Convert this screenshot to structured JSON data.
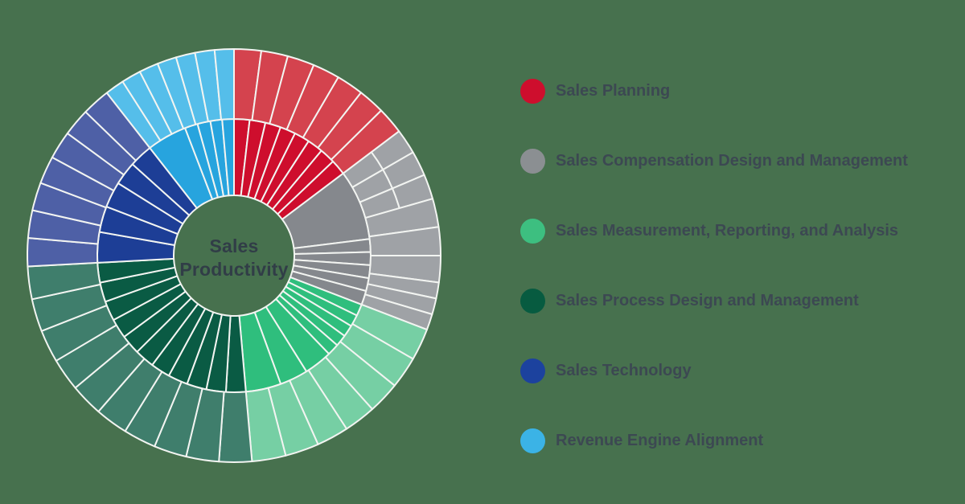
{
  "page": {
    "background_color": "#47714E"
  },
  "chart": {
    "center_label_line1": "Sales",
    "center_label_line2": "Productivity"
  },
  "legend": {
    "items": [
      {
        "label": "Sales Planning",
        "color": "#CE0E2D"
      },
      {
        "label": "Sales Compensation Design and Management",
        "color": "#8B8F92"
      },
      {
        "label": "Sales Measurement, Reporting, and Analysis",
        "color": "#3DBF80"
      },
      {
        "label": "Sales Process Design and Management",
        "color": "#075B40"
      },
      {
        "label": "Sales Technology",
        "color": "#1C429E"
      },
      {
        "label": "Revenue Engine Alignment",
        "color": "#3BB3E6"
      }
    ]
  },
  "chart_data": {
    "type": "sunburst",
    "title": "Sales Productivity",
    "center_label": [
      "Sales",
      "Productivity"
    ],
    "rings": 2,
    "legend_position": "right",
    "angle_convention": "degrees clockwise from 12 o'clock",
    "categories": [
      {
        "name": "Sales Planning",
        "inner_color": "#CE0E2D",
        "outer_color": "#D4434E",
        "start_angle": 0,
        "end_angle": 53,
        "inner_boundaries": [
          0,
          6.6,
          13.3,
          19.9,
          26.5,
          33.1,
          39.8,
          46.4,
          53
        ],
        "outer_boundaries": [
          0,
          7.6,
          15.1,
          22.7,
          30.3,
          37.9,
          45.4,
          53
        ],
        "split_outer": []
      },
      {
        "name": "Sales Compensation Design and Management",
        "inner_color": "#85888D",
        "outer_color": "#9FA2A6",
        "start_angle": 53,
        "end_angle": 111,
        "inner_boundaries": [
          53,
          83,
          88.5,
          94,
          99.5,
          105,
          111
        ],
        "outer_boundaries": [
          53,
          60,
          67,
          74,
          82,
          90,
          97.5,
          102,
          106.5,
          111
        ],
        "split_outer": [
          0,
          1,
          2
        ]
      },
      {
        "name": "Sales Measurement, Reporting, and Analysis",
        "inner_color": "#2FBE7D",
        "outer_color": "#76CFA4",
        "start_angle": 111,
        "end_angle": 175,
        "inner_boundaries": [
          111,
          116,
          121,
          126,
          131,
          136,
          148,
          160,
          175
        ],
        "outer_boundaries": [
          111,
          120,
          129,
          138,
          147,
          156,
          165.5,
          175
        ],
        "split_outer": []
      },
      {
        "name": "Sales Process Design and Management",
        "inner_color": "#0A5B44",
        "outer_color": "#3F7E6C",
        "start_angle": 175,
        "end_angle": 267,
        "inner_boundaries": [
          175,
          183.4,
          191.7,
          200.1,
          208.5,
          216.8,
          225.2,
          233.5,
          241.9,
          250.3,
          258.6,
          267
        ],
        "outer_boundaries": [
          175,
          184.2,
          193.4,
          202.6,
          211.8,
          221,
          230.2,
          239.4,
          248.6,
          257.8,
          267
        ],
        "split_outer": []
      },
      {
        "name": "Sales Technology",
        "inner_color": "#1D3E96",
        "outer_color": "#4E60A6",
        "start_angle": 267,
        "end_angle": 322,
        "inner_boundaries": [
          267,
          280,
          291,
          302,
          312,
          322
        ],
        "outer_boundaries": [
          267,
          274.9,
          282.7,
          290.6,
          298.4,
          306.3,
          314.1,
          322
        ],
        "split_outer": []
      },
      {
        "name": "Revenue Engine Alignment",
        "inner_color": "#27A4DE",
        "outer_color": "#55BEEA",
        "start_angle": 322,
        "end_angle": 360,
        "inner_boundaries": [
          322,
          339,
          344.5,
          350,
          355,
          360
        ],
        "outer_boundaries": [
          322,
          327.4,
          332.9,
          338.3,
          343.7,
          349.1,
          354.6,
          360
        ],
        "split_outer": []
      }
    ]
  }
}
